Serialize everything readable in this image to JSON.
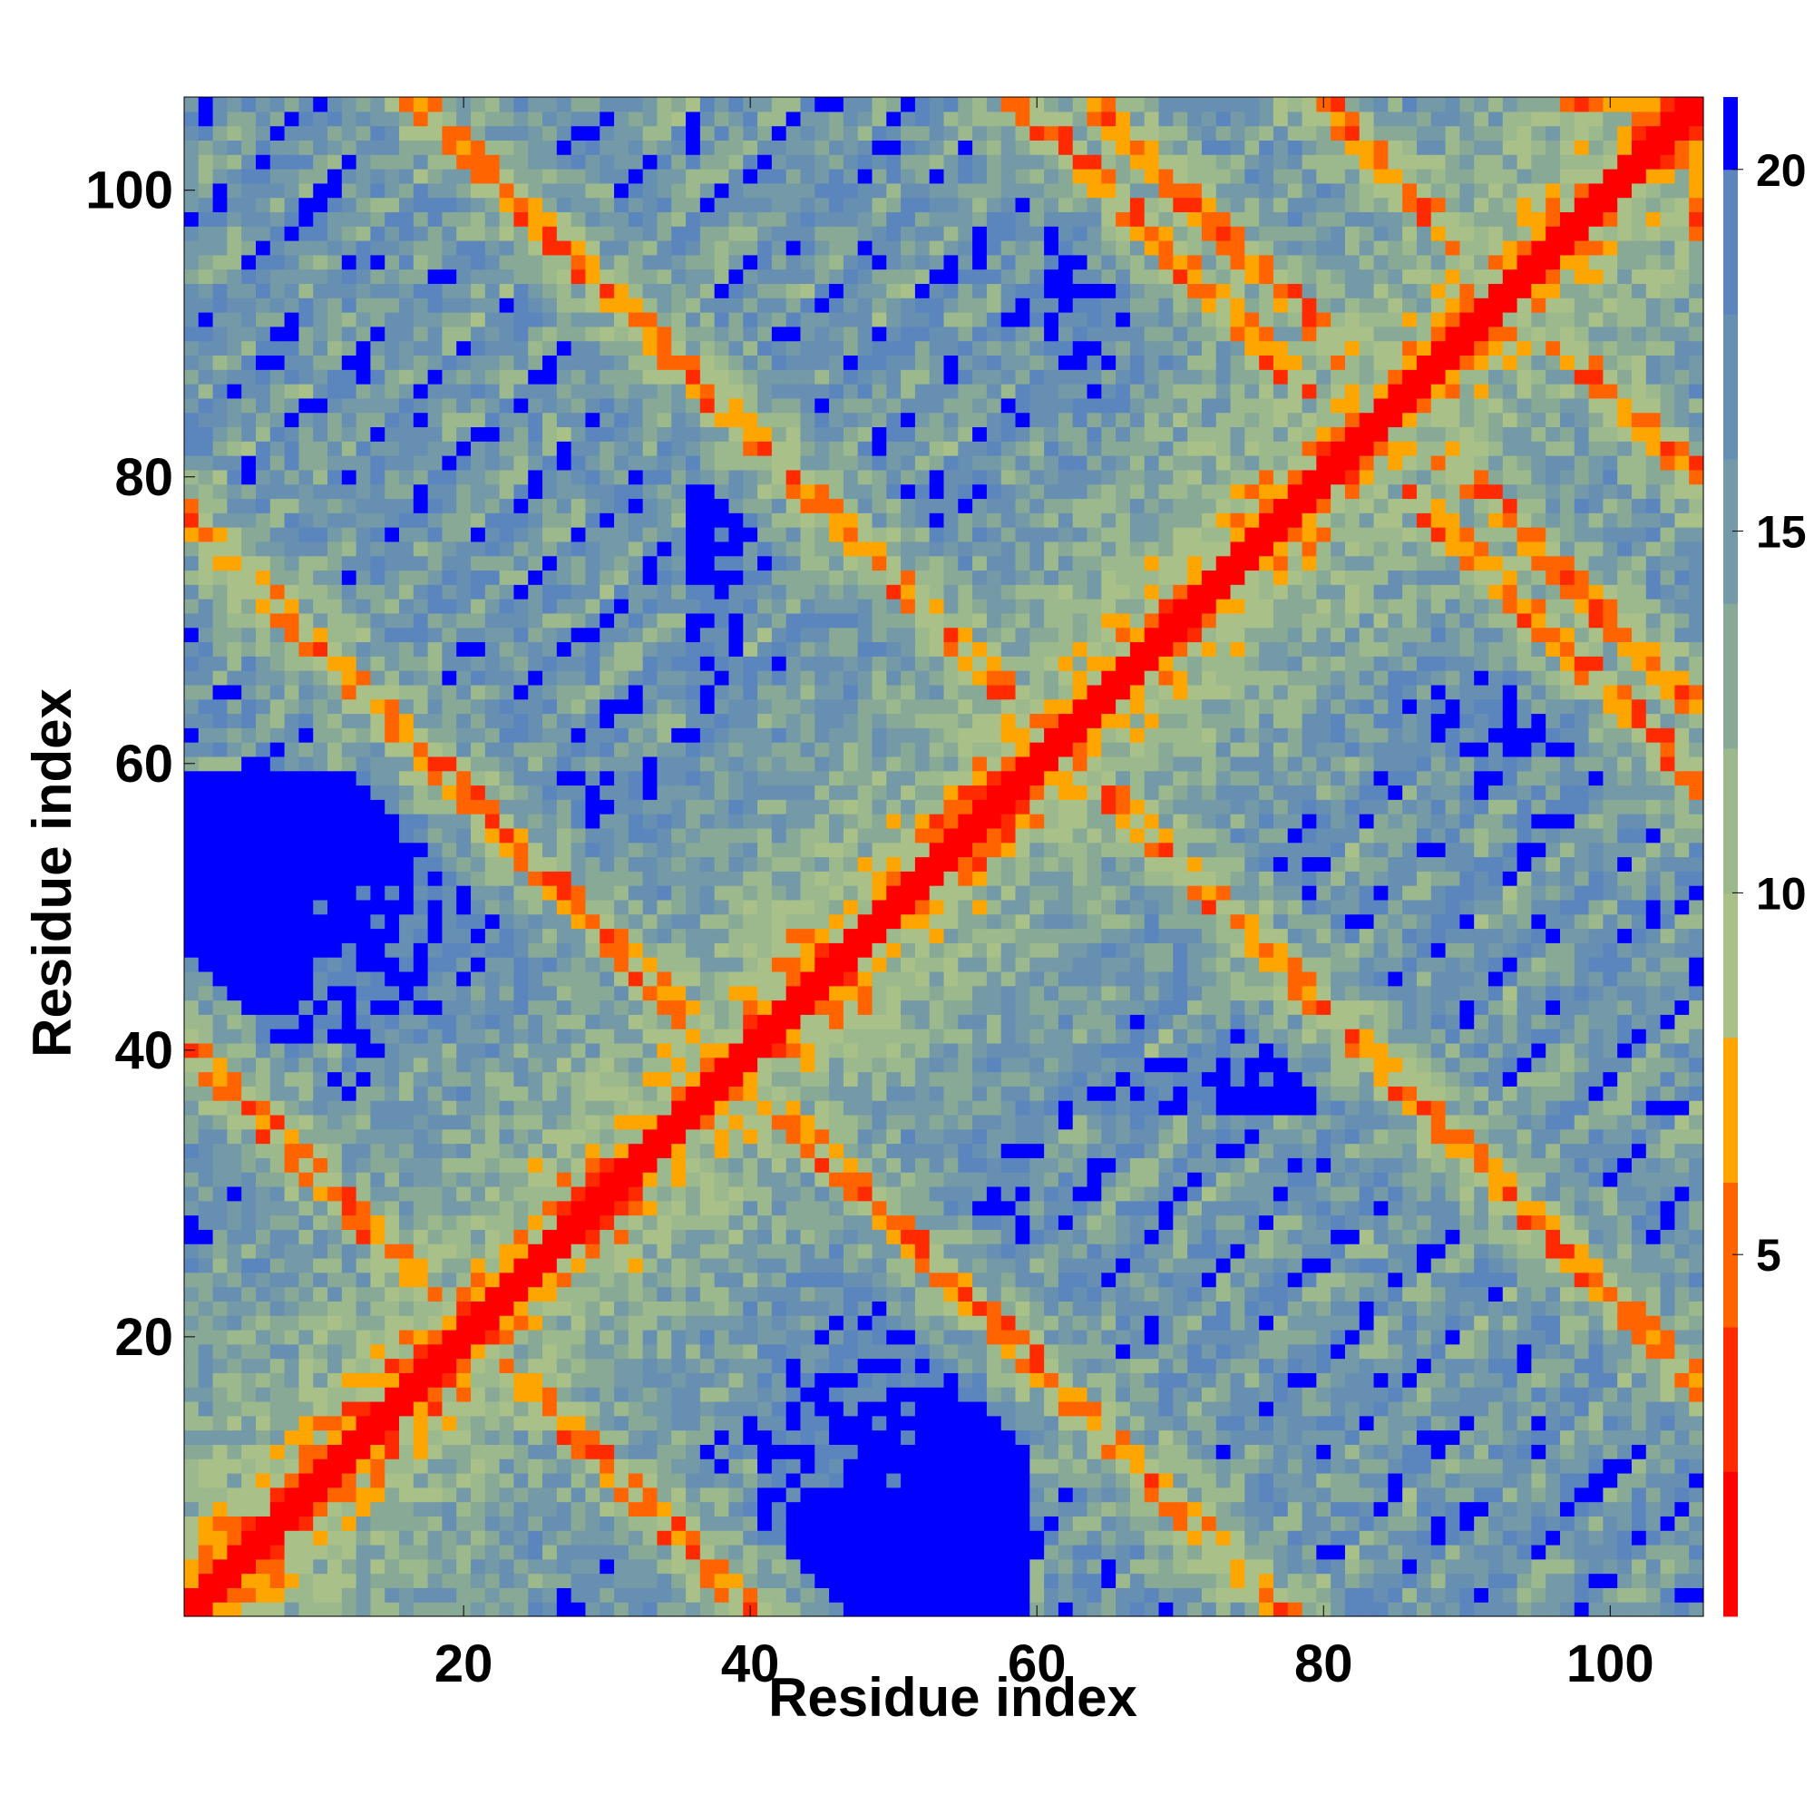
{
  "chart_data": {
    "type": "heatmap",
    "title": "",
    "xlabel": "Residue index",
    "ylabel": "Residue index",
    "xlim": [
      1,
      106
    ],
    "ylim": [
      1,
      106
    ],
    "n_residues": 106,
    "x_ticks": [
      "20",
      "40",
      "60",
      "80",
      "100"
    ],
    "y_ticks": [
      "20",
      "40",
      "60",
      "80",
      "100"
    ],
    "colorbar": {
      "range": [
        0,
        21
      ],
      "ticks": [
        "5",
        "10",
        "15",
        "20"
      ],
      "tick_values": [
        5,
        10,
        15,
        20
      ],
      "bands": [
        {
          "from": 0,
          "to": 2,
          "color": "#ff0000"
        },
        {
          "from": 2,
          "to": 4,
          "color": "#ff2a00"
        },
        {
          "from": 4,
          "to": 6,
          "color": "#ff6400"
        },
        {
          "from": 6,
          "to": 8,
          "color": "#ffa500"
        },
        {
          "from": 8,
          "to": 10,
          "color": "#a9c088"
        },
        {
          "from": 10,
          "to": 12,
          "color": "#9cb88d"
        },
        {
          "from": 12,
          "to": 14,
          "color": "#87a995"
        },
        {
          "from": 14,
          "to": 16,
          "color": "#7499a7"
        },
        {
          "from": 16,
          "to": 18,
          "color": "#668fb2"
        },
        {
          "from": 18,
          "to": 20,
          "color": "#5b85bd"
        },
        {
          "from": 20,
          "to": 21,
          "color": "#0000ff"
        }
      ]
    },
    "structure": {
      "note": "distance map; values estimated from color",
      "parallel_bands": [
        [
          1,
          23
        ],
        [
          27,
          33
        ],
        [
          40,
          48
        ],
        [
          52,
          64
        ],
        [
          70,
          80
        ]
      ],
      "antiparallel_bands": [
        [
          84,
          106
        ],
        [
          80,
          90
        ],
        [
          36,
          42
        ],
        [
          98,
          106
        ],
        [
          17,
          24
        ]
      ]
    }
  }
}
